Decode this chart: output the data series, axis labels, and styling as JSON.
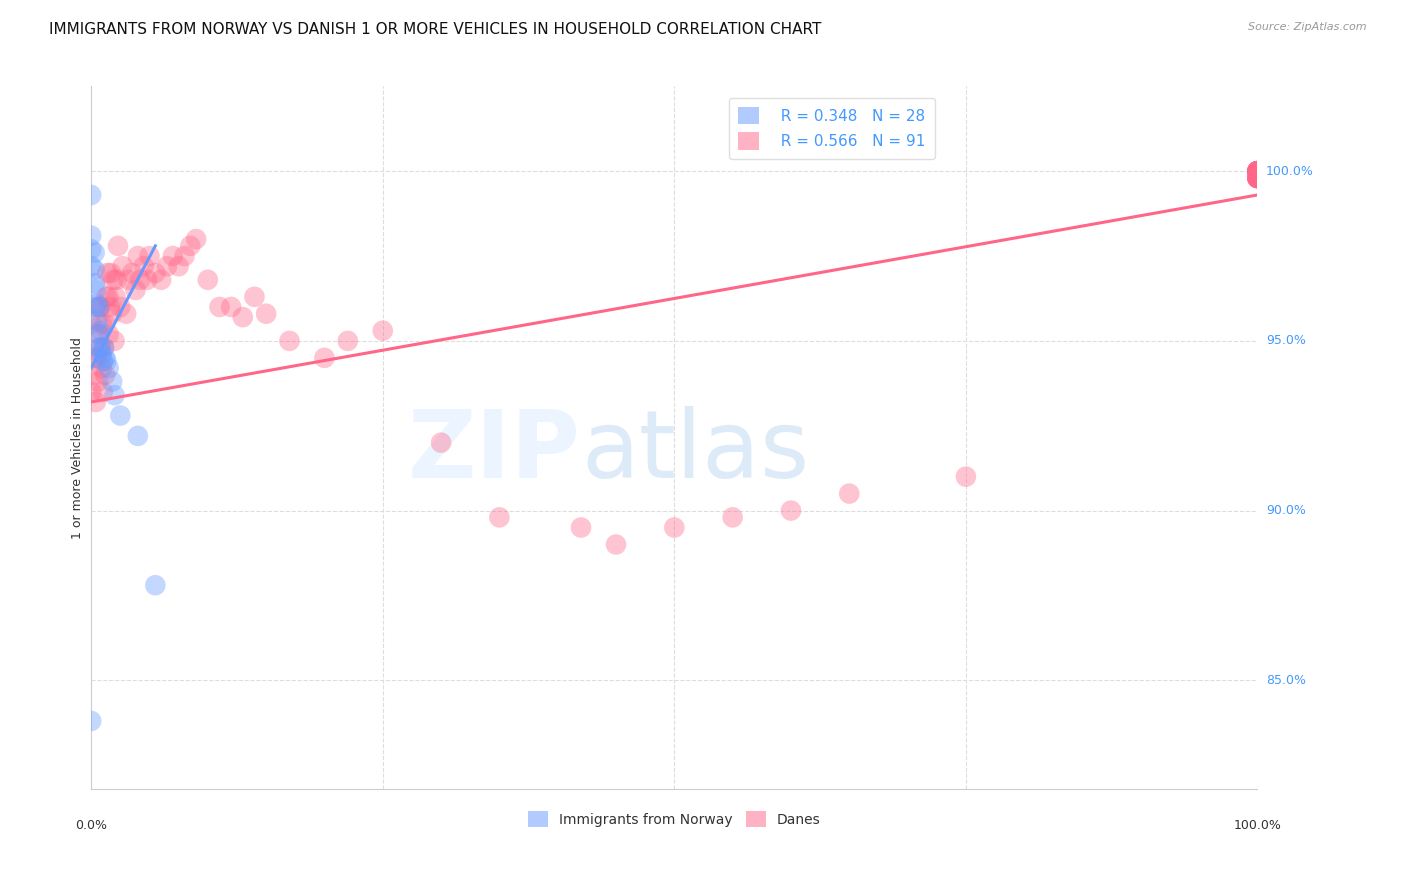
{
  "title": "IMMIGRANTS FROM NORWAY VS DANISH 1 OR MORE VEHICLES IN HOUSEHOLD CORRELATION CHART",
  "source": "Source: ZipAtlas.com",
  "ylabel": "1 or more Vehicles in Household",
  "ytick_labels": [
    "100.0%",
    "95.0%",
    "90.0%",
    "85.0%"
  ],
  "ytick_values": [
    1.0,
    0.95,
    0.9,
    0.85
  ],
  "xlim": [
    0.0,
    1.0
  ],
  "ylim": [
    0.818,
    1.025
  ],
  "legend_r_norway": "R = 0.348",
  "legend_n_norway": "N = 28",
  "legend_r_danes": "R = 0.566",
  "legend_n_danes": "N = 91",
  "legend_label_norway": "Immigrants from Norway",
  "legend_label_danes": "Danes",
  "norway_color": "#6699FF",
  "danes_color": "#FF6688",
  "norway_scatter_x": [
    0.0,
    0.0,
    0.0,
    0.0,
    0.0,
    0.003,
    0.003,
    0.003,
    0.004,
    0.004,
    0.005,
    0.005,
    0.006,
    0.007,
    0.007,
    0.008,
    0.008,
    0.009,
    0.01,
    0.011,
    0.012,
    0.013,
    0.015,
    0.018,
    0.02,
    0.025,
    0.04,
    0.055
  ],
  "norway_scatter_y": [
    0.838,
    0.972,
    0.977,
    0.981,
    0.993,
    0.967,
    0.971,
    0.976,
    0.96,
    0.965,
    0.956,
    0.961,
    0.948,
    0.952,
    0.96,
    0.948,
    0.953,
    0.946,
    0.944,
    0.948,
    0.945,
    0.944,
    0.942,
    0.938,
    0.934,
    0.928,
    0.922,
    0.878
  ],
  "danes_scatter_x": [
    0.0,
    0.0,
    0.002,
    0.003,
    0.004,
    0.005,
    0.006,
    0.006,
    0.007,
    0.008,
    0.008,
    0.009,
    0.009,
    0.01,
    0.011,
    0.012,
    0.012,
    0.013,
    0.014,
    0.015,
    0.015,
    0.016,
    0.017,
    0.018,
    0.019,
    0.02,
    0.021,
    0.022,
    0.023,
    0.025,
    0.027,
    0.03,
    0.032,
    0.035,
    0.038,
    0.04,
    0.042,
    0.045,
    0.048,
    0.05,
    0.055,
    0.06,
    0.065,
    0.07,
    0.075,
    0.08,
    0.085,
    0.09,
    0.1,
    0.11,
    0.12,
    0.13,
    0.14,
    0.15,
    0.17,
    0.2,
    0.22,
    0.25,
    0.3,
    0.35,
    0.42,
    0.45,
    0.5,
    0.55,
    0.6,
    0.65,
    0.75,
    1.0,
    1.0,
    1.0,
    1.0,
    1.0,
    1.0,
    1.0,
    1.0,
    1.0,
    1.0,
    1.0,
    1.0,
    1.0,
    1.0,
    1.0,
    1.0,
    1.0,
    1.0,
    1.0,
    1.0,
    1.0,
    1.0,
    1.0,
    1.0
  ],
  "danes_scatter_y": [
    0.935,
    0.955,
    0.94,
    0.945,
    0.932,
    0.945,
    0.938,
    0.952,
    0.96,
    0.948,
    0.96,
    0.942,
    0.955,
    0.935,
    0.948,
    0.94,
    0.955,
    0.963,
    0.97,
    0.952,
    0.963,
    0.96,
    0.97,
    0.958,
    0.968,
    0.95,
    0.963,
    0.968,
    0.978,
    0.96,
    0.972,
    0.958,
    0.968,
    0.97,
    0.965,
    0.975,
    0.968,
    0.972,
    0.968,
    0.975,
    0.97,
    0.968,
    0.972,
    0.975,
    0.972,
    0.975,
    0.978,
    0.98,
    0.968,
    0.96,
    0.96,
    0.957,
    0.963,
    0.958,
    0.95,
    0.945,
    0.95,
    0.953,
    0.92,
    0.898,
    0.895,
    0.89,
    0.895,
    0.898,
    0.9,
    0.905,
    0.91,
    0.998,
    1.0,
    0.998,
    1.0,
    1.0,
    0.998,
    1.0,
    1.0,
    0.998,
    1.0,
    0.998,
    1.0,
    1.0,
    0.998,
    1.0,
    1.0,
    0.998,
    1.0,
    1.0,
    0.998,
    1.0,
    1.0,
    0.998,
    1.0
  ],
  "norway_trend_x": [
    0.0,
    0.055
  ],
  "norway_trend_y": [
    0.942,
    0.978
  ],
  "danes_trend_x": [
    0.0,
    1.0
  ],
  "danes_trend_y": [
    0.932,
    0.993
  ],
  "watermark_zip": "ZIP",
  "watermark_atlas": "atlas",
  "background_color": "#FFFFFF",
  "grid_color": "#DDDDDD",
  "title_fontsize": 11,
  "source_fontsize": 8,
  "axis_label_fontsize": 9,
  "tick_fontsize": 9,
  "legend_fontsize": 11,
  "scatter_size": 220,
  "scatter_alpha": 0.38,
  "trend_linewidth": 2.2,
  "ytick_color": "#4499FF",
  "xtick_color": "#333333"
}
